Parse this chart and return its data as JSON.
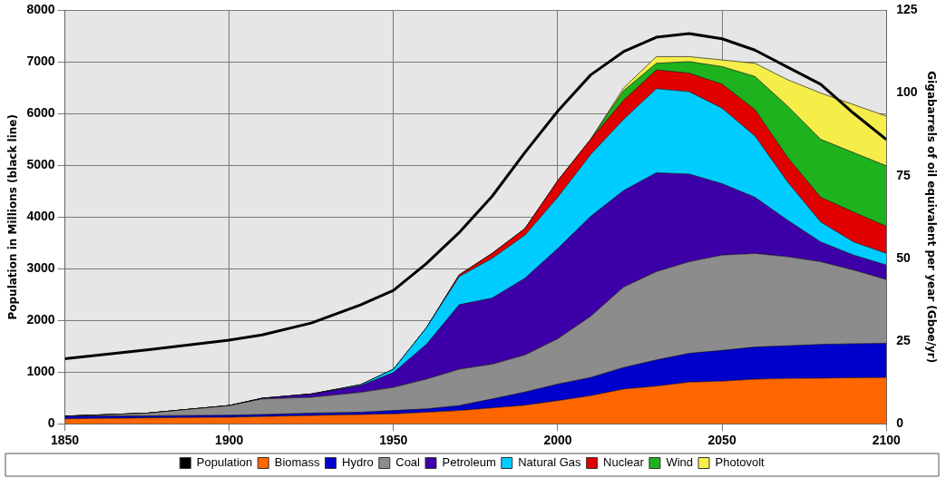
{
  "chart_data": {
    "type": "area",
    "stacked": true,
    "ylabel": "Population in Millions (black line)",
    "y2label": "Gigabarrels of oil equivalent per year (Gboe/yr)",
    "x": [
      1850,
      1875,
      1900,
      1910,
      1925,
      1940,
      1950,
      1960,
      1970,
      1980,
      1990,
      2000,
      2010,
      2020,
      2030,
      2040,
      2050,
      2060,
      2070,
      2080,
      2090,
      2100
    ],
    "xlim": [
      1850,
      2100
    ],
    "xticks": [
      1850,
      1900,
      1950,
      2000,
      2050,
      2100
    ],
    "ylim": [
      0,
      8000
    ],
    "yticks": [
      0,
      1000,
      2000,
      3000,
      4000,
      5000,
      6000,
      7000,
      8000
    ],
    "y2lim": [
      0,
      125
    ],
    "y2ticks": [
      0,
      25,
      50,
      75,
      100,
      125
    ],
    "grid": true,
    "legend": "bottom",
    "marker": "none",
    "line_style": "solid",
    "series": [
      {
        "name": "Population",
        "type": "line",
        "axis": "y",
        "color": "#000000",
        "values": [
          1260,
          1430,
          1620,
          1720,
          1950,
          2300,
          2580,
          3100,
          3700,
          4400,
          5250,
          6050,
          6750,
          7200,
          7480,
          7550,
          7450,
          7230,
          6900,
          6570,
          6010,
          5500
        ]
      },
      {
        "name": "Biomass",
        "axis": "y2",
        "color": "#ff6600",
        "values": [
          1.5,
          1.8,
          2,
          2.2,
          2.5,
          2.8,
          3,
          3.5,
          4,
          4.8,
          5.6,
          7,
          8.5,
          10.5,
          11.4,
          12.6,
          12.9,
          13.5,
          13.7,
          13.8,
          13.9,
          14
        ]
      },
      {
        "name": "Hydro",
        "axis": "y2",
        "color": "#0000cc",
        "values": [
          0.8,
          0.6,
          0.6,
          0.6,
          0.7,
          0.7,
          1,
          1,
          1.5,
          2.7,
          4,
          5,
          5.5,
          6.5,
          7.9,
          8.7,
          9.3,
          9.7,
          9.9,
          10.2,
          10.3,
          10.3
        ]
      },
      {
        "name": "Coal",
        "axis": "y2",
        "color": "#8c8c8c",
        "values": [
          0,
          0.8,
          2.9,
          4.7,
          4.8,
          6,
          7,
          9,
          11,
          10.5,
          11.2,
          13.7,
          18.5,
          24.3,
          26.7,
          27.7,
          28.8,
          28.3,
          26.9,
          25,
          22.3,
          19.3
        ]
      },
      {
        "name": "Petroleum",
        "axis": "y2",
        "color": "#3d00a8",
        "values": [
          0,
          0,
          0,
          0.2,
          1,
          2,
          4.5,
          10.5,
          19.5,
          20,
          23.2,
          27.3,
          30.2,
          29.2,
          29.9,
          26.5,
          21.6,
          17,
          11,
          6,
          4.5,
          4.4
        ]
      },
      {
        "name": "Natural Gas",
        "axis": "y2",
        "color": "#00ccff",
        "values": [
          0,
          0,
          0,
          0,
          0,
          0.3,
          1,
          5,
          8.5,
          12,
          13,
          15.5,
          18.7,
          21.5,
          25.4,
          24.9,
          22.8,
          18.5,
          11.5,
          6,
          4,
          3.5
        ]
      },
      {
        "name": "Nuclear",
        "axis": "y2",
        "color": "#e00000",
        "values": [
          0,
          0,
          0,
          0,
          0,
          0,
          0,
          0,
          0.5,
          1.5,
          2,
          5,
          4.6,
          5.8,
          5.7,
          5.6,
          7.3,
          8,
          7.5,
          7.5,
          9,
          8.2
        ]
      },
      {
        "name": "Wind",
        "axis": "y2",
        "color": "#1fb21f",
        "values": [
          0,
          0,
          0,
          0,
          0,
          0,
          0,
          0,
          0,
          0,
          0,
          0,
          0,
          2.9,
          2,
          3.5,
          5.3,
          10,
          15.5,
          17.5,
          18,
          18.3
        ]
      },
      {
        "name": "Photovolt",
        "axis": "y2",
        "color": "#f5ee4a",
        "values": [
          0,
          0,
          0,
          0,
          0,
          0,
          0,
          0,
          0,
          0,
          0,
          0,
          0,
          0.8,
          2,
          1.5,
          2,
          4,
          8,
          14,
          14.5,
          15
        ]
      }
    ]
  }
}
